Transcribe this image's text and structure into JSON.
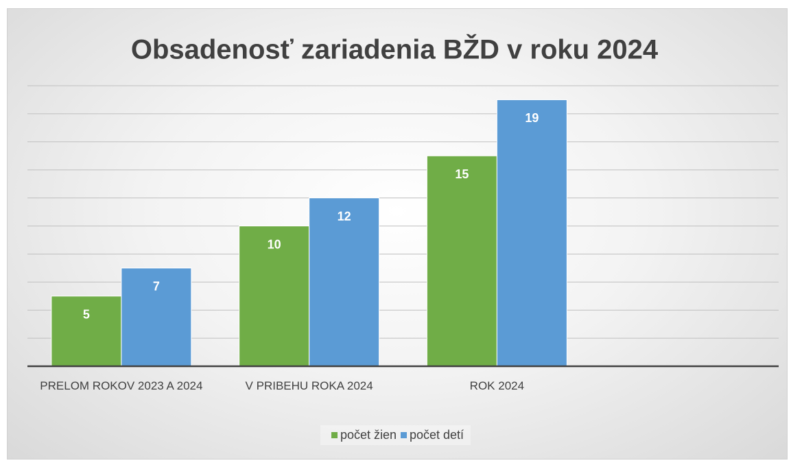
{
  "chart_data": {
    "type": "bar",
    "title": "Obsadenosť zariadenia BŽD v roku 2024",
    "categories": [
      "PRELOM ROKOV 2023 A 2024",
      "V PRIBEHU ROKA 2024",
      "ROK 2024",
      null
    ],
    "series": [
      {
        "name": "počet žien",
        "color": "#70ad47",
        "values": [
          5,
          10,
          15,
          null
        ]
      },
      {
        "name": "počet detí",
        "color": "#5b9bd5",
        "values": [
          7,
          12,
          19,
          null
        ]
      }
    ],
    "ylim": [
      0,
      20
    ],
    "yticks": [
      0,
      2,
      4,
      6,
      8,
      10,
      12,
      14,
      16,
      18,
      20
    ],
    "grid": true,
    "legend": "bottom"
  }
}
